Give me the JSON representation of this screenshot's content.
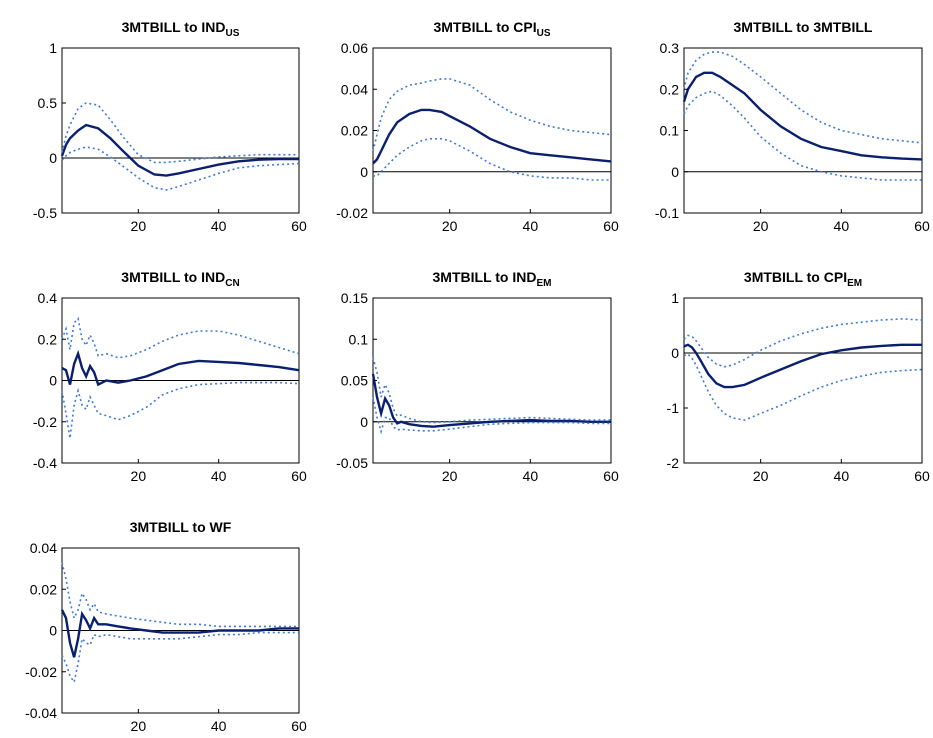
{
  "colors": {
    "irf": "#0a1f6e",
    "band": "#3d7bd9",
    "axis": "#000000"
  },
  "chart_data": [
    {
      "type": "line",
      "title": {
        "main": "3MTBILL to IND",
        "sub": "US"
      },
      "xlim": [
        1,
        60
      ],
      "ylim": [
        -0.5,
        1
      ],
      "xticks": [
        {
          "v": 20,
          "label": "20"
        },
        {
          "v": 40,
          "label": "40"
        },
        {
          "v": 60,
          "label": "60"
        }
      ],
      "yticks": [
        {
          "v": -0.5,
          "label": "-0.5"
        },
        {
          "v": 0,
          "label": "0"
        },
        {
          "v": 0.5,
          "label": "0.5"
        },
        {
          "v": 1,
          "label": "1"
        }
      ],
      "x": [
        1,
        2,
        3,
        5,
        7,
        10,
        13,
        16,
        20,
        24,
        27,
        30,
        35,
        40,
        45,
        50,
        55,
        60
      ],
      "series": [
        {
          "role": "irf",
          "values": [
            0.02,
            0.12,
            0.18,
            0.25,
            0.3,
            0.27,
            0.18,
            0.07,
            -0.07,
            -0.15,
            -0.16,
            -0.14,
            -0.1,
            -0.06,
            -0.03,
            -0.015,
            -0.01,
            -0.01
          ]
        },
        {
          "role": "upper",
          "values": [
            0.05,
            0.2,
            0.3,
            0.45,
            0.5,
            0.48,
            0.35,
            0.2,
            0.03,
            -0.04,
            -0.04,
            -0.03,
            -0.01,
            0.01,
            0.02,
            0.03,
            0.03,
            0.03
          ]
        },
        {
          "role": "lower",
          "values": [
            -0.02,
            0.02,
            0.05,
            0.08,
            0.1,
            0.08,
            0.01,
            -0.07,
            -0.18,
            -0.27,
            -0.29,
            -0.26,
            -0.2,
            -0.14,
            -0.09,
            -0.07,
            -0.06,
            -0.05
          ]
        }
      ]
    },
    {
      "type": "line",
      "title": {
        "main": "3MTBILL to CPI",
        "sub": "US"
      },
      "xlim": [
        1,
        60
      ],
      "ylim": [
        -0.02,
        0.06
      ],
      "xticks": [
        {
          "v": 20,
          "label": "20"
        },
        {
          "v": 40,
          "label": "40"
        },
        {
          "v": 60,
          "label": "60"
        }
      ],
      "yticks": [
        {
          "v": -0.02,
          "label": "-0.02"
        },
        {
          "v": 0,
          "label": "0"
        },
        {
          "v": 0.02,
          "label": "0.02"
        },
        {
          "v": 0.04,
          "label": "0.04"
        },
        {
          "v": 0.06,
          "label": "0.06"
        }
      ],
      "x": [
        1,
        2,
        3,
        5,
        7,
        10,
        13,
        15,
        18,
        20,
        25,
        30,
        35,
        40,
        45,
        50,
        55,
        60
      ],
      "series": [
        {
          "role": "irf",
          "values": [
            0.004,
            0.006,
            0.01,
            0.018,
            0.024,
            0.028,
            0.03,
            0.03,
            0.029,
            0.027,
            0.022,
            0.016,
            0.012,
            0.009,
            0.008,
            0.007,
            0.006,
            0.005
          ]
        },
        {
          "role": "upper",
          "values": [
            0.01,
            0.018,
            0.026,
            0.035,
            0.039,
            0.042,
            0.043,
            0.044,
            0.045,
            0.045,
            0.042,
            0.035,
            0.029,
            0.025,
            0.022,
            0.02,
            0.019,
            0.018
          ]
        },
        {
          "role": "lower",
          "values": [
            -0.002,
            -0.002,
            0.0,
            0.004,
            0.008,
            0.012,
            0.015,
            0.016,
            0.016,
            0.015,
            0.01,
            0.004,
            0.0,
            -0.002,
            -0.003,
            -0.003,
            -0.004,
            -0.004
          ]
        }
      ]
    },
    {
      "type": "line",
      "title": {
        "main": "3MTBILL to 3MTBILL",
        "sub": ""
      },
      "xlim": [
        1,
        60
      ],
      "ylim": [
        -0.1,
        0.3
      ],
      "xticks": [
        {
          "v": 20,
          "label": "20"
        },
        {
          "v": 40,
          "label": "40"
        },
        {
          "v": 60,
          "label": "60"
        }
      ],
      "yticks": [
        {
          "v": -0.1,
          "label": "-0.1"
        },
        {
          "v": 0,
          "label": "0"
        },
        {
          "v": 0.1,
          "label": "0.1"
        },
        {
          "v": 0.2,
          "label": "0.2"
        },
        {
          "v": 0.3,
          "label": "0.3"
        }
      ],
      "x": [
        1,
        2,
        4,
        6,
        8,
        10,
        13,
        16,
        20,
        25,
        30,
        35,
        40,
        45,
        50,
        55,
        60
      ],
      "series": [
        {
          "role": "irf",
          "values": [
            0.17,
            0.2,
            0.23,
            0.24,
            0.24,
            0.23,
            0.21,
            0.19,
            0.15,
            0.11,
            0.08,
            0.06,
            0.05,
            0.04,
            0.035,
            0.032,
            0.03
          ]
        },
        {
          "role": "upper",
          "values": [
            0.2,
            0.24,
            0.27,
            0.285,
            0.29,
            0.29,
            0.28,
            0.26,
            0.23,
            0.19,
            0.15,
            0.12,
            0.1,
            0.09,
            0.08,
            0.075,
            0.07
          ]
        },
        {
          "role": "lower",
          "values": [
            0.14,
            0.16,
            0.18,
            0.19,
            0.195,
            0.185,
            0.16,
            0.13,
            0.085,
            0.045,
            0.015,
            0.0,
            -0.01,
            -0.015,
            -0.02,
            -0.02,
            -0.02
          ]
        }
      ]
    },
    {
      "type": "line",
      "title": {
        "main": "3MTBILL to IND",
        "sub": "CN"
      },
      "xlim": [
        1,
        60
      ],
      "ylim": [
        -0.4,
        0.4
      ],
      "xticks": [
        {
          "v": 20,
          "label": "20"
        },
        {
          "v": 40,
          "label": "40"
        },
        {
          "v": 60,
          "label": "60"
        }
      ],
      "yticks": [
        {
          "v": -0.4,
          "label": "-0.4"
        },
        {
          "v": -0.2,
          "label": "-0.2"
        },
        {
          "v": 0,
          "label": "0"
        },
        {
          "v": 0.2,
          "label": "0.2"
        },
        {
          "v": 0.4,
          "label": "0.4"
        }
      ],
      "x": [
        1,
        2,
        3,
        4,
        5,
        6,
        7,
        8,
        9,
        10,
        12,
        15,
        18,
        22,
        26,
        30,
        35,
        40,
        45,
        50,
        55,
        60
      ],
      "series": [
        {
          "role": "irf",
          "values": [
            0.06,
            0.05,
            -0.02,
            0.08,
            0.13,
            0.06,
            0.02,
            0.07,
            0.04,
            -0.02,
            0.0,
            -0.01,
            0.0,
            0.02,
            0.05,
            0.08,
            0.095,
            0.09,
            0.085,
            0.075,
            0.065,
            0.05
          ]
        },
        {
          "role": "upper",
          "values": [
            0.2,
            0.25,
            0.15,
            0.28,
            0.3,
            0.2,
            0.17,
            0.22,
            0.18,
            0.12,
            0.13,
            0.11,
            0.12,
            0.15,
            0.19,
            0.22,
            0.24,
            0.24,
            0.22,
            0.19,
            0.16,
            0.13
          ]
        },
        {
          "role": "lower",
          "values": [
            -0.05,
            -0.16,
            -0.28,
            -0.12,
            -0.05,
            -0.12,
            -0.14,
            -0.08,
            -0.12,
            -0.16,
            -0.17,
            -0.19,
            -0.17,
            -0.13,
            -0.07,
            -0.04,
            -0.02,
            -0.015,
            -0.01,
            -0.01,
            -0.01,
            -0.015
          ]
        }
      ]
    },
    {
      "type": "line",
      "title": {
        "main": "3MTBILL to IND",
        "sub": "EM"
      },
      "xlim": [
        1,
        60
      ],
      "ylim": [
        -0.05,
        0.15
      ],
      "xticks": [
        {
          "v": 20,
          "label": "20"
        },
        {
          "v": 40,
          "label": "40"
        },
        {
          "v": 60,
          "label": "60"
        }
      ],
      "yticks": [
        {
          "v": -0.05,
          "label": "-0.05"
        },
        {
          "v": 0,
          "label": "0"
        },
        {
          "v": 0.05,
          "label": "0.05"
        },
        {
          "v": 0.1,
          "label": "0.1"
        },
        {
          "v": 0.15,
          "label": "0.15"
        }
      ],
      "x": [
        1,
        2,
        3,
        4,
        5,
        6,
        7,
        8,
        10,
        13,
        16,
        20,
        25,
        30,
        35,
        40,
        45,
        50,
        55,
        60
      ],
      "series": [
        {
          "role": "irf",
          "values": [
            0.058,
            0.03,
            0.01,
            0.028,
            0.02,
            0.005,
            -0.002,
            0.0,
            -0.003,
            -0.005,
            -0.006,
            -0.004,
            -0.002,
            0.0,
            0.001,
            0.002,
            0.001,
            0.001,
            0.0,
            0.0
          ]
        },
        {
          "role": "upper",
          "values": [
            0.078,
            0.06,
            0.03,
            0.045,
            0.035,
            0.016,
            0.007,
            0.008,
            0.004,
            0.0,
            -0.001,
            0.0,
            0.002,
            0.003,
            0.004,
            0.005,
            0.004,
            0.003,
            0.002,
            0.002
          ]
        },
        {
          "role": "lower",
          "values": [
            0.03,
            0.005,
            -0.012,
            0.005,
            0.005,
            -0.006,
            -0.01,
            -0.009,
            -0.01,
            -0.011,
            -0.011,
            -0.009,
            -0.006,
            -0.003,
            -0.002,
            -0.001,
            -0.001,
            -0.001,
            -0.002,
            -0.002
          ]
        }
      ]
    },
    {
      "type": "line",
      "title": {
        "main": "3MTBILL to CPI",
        "sub": "EM"
      },
      "xlim": [
        1,
        60
      ],
      "ylim": [
        -2,
        1
      ],
      "xticks": [
        {
          "v": 20,
          "label": "20"
        },
        {
          "v": 40,
          "label": "40"
        },
        {
          "v": 60,
          "label": "60"
        }
      ],
      "yticks": [
        {
          "v": -2,
          "label": "-2"
        },
        {
          "v": -1,
          "label": "-1"
        },
        {
          "v": 0,
          "label": "0"
        },
        {
          "v": 1,
          "label": "1"
        }
      ],
      "x": [
        1,
        2,
        3,
        4,
        5,
        7,
        9,
        11,
        13,
        16,
        20,
        25,
        30,
        35,
        40,
        45,
        50,
        55,
        60
      ],
      "series": [
        {
          "role": "irf",
          "values": [
            0.12,
            0.15,
            0.1,
            0.0,
            -0.12,
            -0.38,
            -0.55,
            -0.62,
            -0.62,
            -0.58,
            -0.45,
            -0.3,
            -0.15,
            -0.02,
            0.05,
            0.1,
            0.13,
            0.15,
            0.15
          ]
        },
        {
          "role": "upper",
          "values": [
            0.25,
            0.32,
            0.3,
            0.22,
            0.12,
            -0.08,
            -0.2,
            -0.25,
            -0.22,
            -0.12,
            0.05,
            0.22,
            0.35,
            0.45,
            0.52,
            0.56,
            0.6,
            0.62,
            0.6
          ]
        },
        {
          "role": "lower",
          "values": [
            -0.05,
            -0.02,
            -0.1,
            -0.22,
            -0.38,
            -0.7,
            -0.95,
            -1.1,
            -1.18,
            -1.22,
            -1.1,
            -0.95,
            -0.78,
            -0.62,
            -0.5,
            -0.42,
            -0.35,
            -0.32,
            -0.3
          ]
        }
      ]
    },
    {
      "type": "line",
      "title": {
        "main": "3MTBILL to WF",
        "sub": ""
      },
      "xlim": [
        1,
        60
      ],
      "ylim": [
        -0.04,
        0.04
      ],
      "xticks": [
        {
          "v": 20,
          "label": "20"
        },
        {
          "v": 40,
          "label": "40"
        },
        {
          "v": 60,
          "label": "60"
        }
      ],
      "yticks": [
        {
          "v": -0.04,
          "label": "-0.04"
        },
        {
          "v": -0.02,
          "label": "-0.02"
        },
        {
          "v": 0,
          "label": "0"
        },
        {
          "v": 0.02,
          "label": "0.02"
        },
        {
          "v": 0.04,
          "label": "0.04"
        }
      ],
      "x": [
        1,
        2,
        3,
        4,
        5,
        6,
        7,
        8,
        9,
        10,
        12,
        15,
        18,
        22,
        26,
        30,
        35,
        40,
        45,
        50,
        55,
        60
      ],
      "series": [
        {
          "role": "irf",
          "values": [
            0.01,
            0.006,
            -0.006,
            -0.013,
            -0.004,
            0.008,
            0.005,
            0.001,
            0.006,
            0.003,
            0.003,
            0.002,
            0.001,
            0.0,
            -0.001,
            -0.001,
            -0.001,
            0.0,
            0.0,
            0.0,
            0.001,
            0.001
          ]
        },
        {
          "role": "upper",
          "values": [
            0.033,
            0.025,
            0.014,
            0.006,
            0.01,
            0.018,
            0.015,
            0.01,
            0.013,
            0.009,
            0.008,
            0.007,
            0.006,
            0.005,
            0.004,
            0.003,
            0.003,
            0.002,
            0.002,
            0.002,
            0.002,
            0.002
          ]
        },
        {
          "role": "lower",
          "values": [
            -0.012,
            -0.016,
            -0.022,
            -0.025,
            -0.016,
            -0.004,
            -0.006,
            -0.007,
            -0.002,
            -0.003,
            -0.002,
            -0.003,
            -0.004,
            -0.004,
            -0.004,
            -0.004,
            -0.003,
            -0.002,
            -0.002,
            -0.001,
            -0.001,
            -0.001
          ]
        }
      ]
    }
  ]
}
